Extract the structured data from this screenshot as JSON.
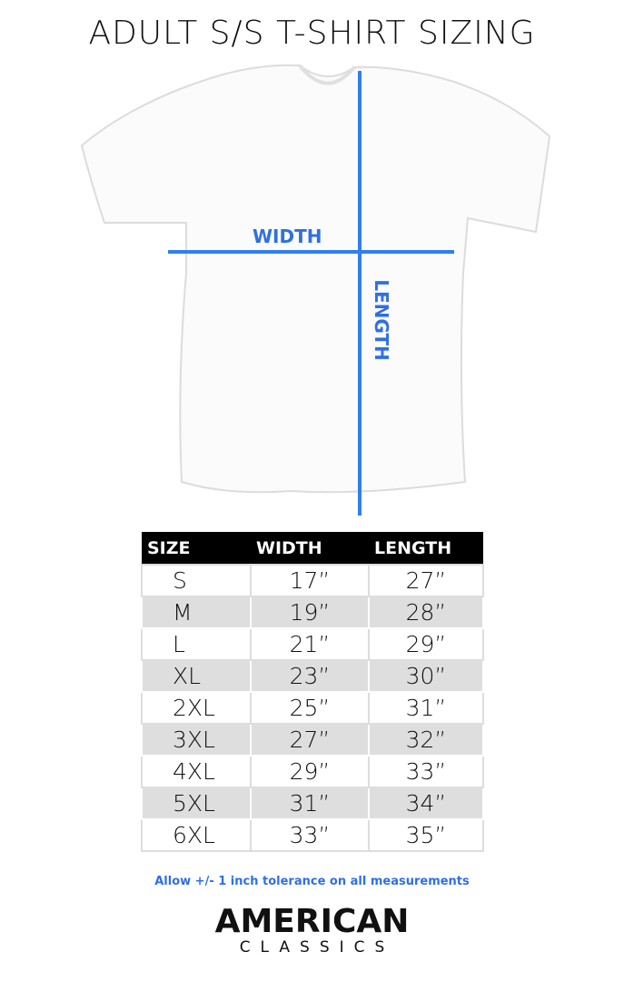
{
  "title": "ADULT S/S T-SHIRT SIZING",
  "diagram": {
    "width_label": "WIDTH",
    "length_label": "LENGTH",
    "line_color": "#2f7ff0"
  },
  "table": {
    "headers": [
      "SIZE",
      "WIDTH",
      "LENGTH"
    ],
    "rows": [
      [
        "S",
        "17”",
        "27”"
      ],
      [
        "M",
        "19”",
        "28”"
      ],
      [
        "L",
        "21”",
        "29”"
      ],
      [
        "XL",
        "23”",
        "30”"
      ],
      [
        "2XL",
        "25”",
        "31”"
      ],
      [
        "3XL",
        "27”",
        "32”"
      ],
      [
        "4XL",
        "29”",
        "33”"
      ],
      [
        "5XL",
        "31”",
        "34”"
      ],
      [
        "6XL",
        "33”",
        "35”"
      ]
    ]
  },
  "note": "Allow +/- 1 inch tolerance on all measurements",
  "logo": {
    "line1": "AMERICAN",
    "line2": "CLASSICS"
  }
}
